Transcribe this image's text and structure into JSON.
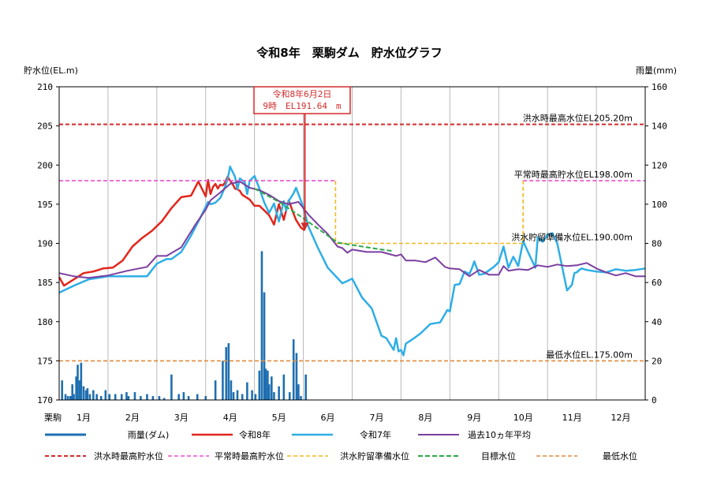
{
  "chart_data": {
    "type": "line",
    "title": "令和8年　栗駒ダム　貯水位グラフ",
    "ylabel": "貯水位(EL.m)",
    "y2label": "雨量(mm)",
    "ylim": [
      170,
      210
    ],
    "y2lim": [
      0,
      160
    ],
    "yticks": [
      170,
      175,
      180,
      185,
      190,
      195,
      200,
      205,
      210
    ],
    "y2ticks": [
      0,
      20,
      40,
      60,
      80,
      100,
      120,
      140,
      160
    ],
    "xlim": [
      0,
      12
    ],
    "dam_label": "栗駒",
    "months": [
      "1月",
      "2月",
      "3月",
      "4月",
      "5月",
      "6月",
      "7月",
      "8月",
      "9月",
      "10月",
      "11月",
      "12月"
    ],
    "grid": "vertical-monthly",
    "annotation": {
      "line1": "令和8年6月2日",
      "line2": "9時　EL191.64　m",
      "x": 5.03,
      "y": 191.64
    },
    "reference_labels": [
      {
        "key": "flood_max",
        "text": "洪水時最高水位EL205.20m",
        "y": 205.2
      },
      {
        "key": "normal_max",
        "text": "平常時最高貯水位EL198.00m",
        "y": 198.0
      },
      {
        "key": "flood_reserve",
        "text": "洪水貯留準備水位EL.190.00m",
        "y": 190.0
      },
      {
        "key": "min_level",
        "text": "最低水位EL.175.00m",
        "y": 175.0
      }
    ],
    "series": [
      {
        "name": "雨量(ダム)",
        "key": "rain",
        "color": "#1f6fb0",
        "style": "bar",
        "axis": "y2",
        "x": [
          0.06,
          0.13,
          0.18,
          0.23,
          0.27,
          0.3,
          0.35,
          0.38,
          0.42,
          0.45,
          0.5,
          0.55,
          0.58,
          0.63,
          0.7,
          0.77,
          0.86,
          0.95,
          1.03,
          1.15,
          1.28,
          1.38,
          1.42,
          1.55,
          1.67,
          1.8,
          1.92,
          2.05,
          2.15,
          2.3,
          2.45,
          2.55,
          2.65,
          2.83,
          3.0,
          3.2,
          3.35,
          3.42,
          3.47,
          3.52,
          3.57,
          3.65,
          3.75,
          3.85,
          3.95,
          4.02,
          4.1,
          4.15,
          4.2,
          4.23,
          4.27,
          4.3,
          4.35,
          4.4,
          4.5,
          4.6,
          4.72,
          4.8,
          4.86,
          4.9,
          4.95,
          5.05
        ],
        "values": [
          10,
          3,
          2,
          2,
          8,
          3,
          12,
          18,
          10,
          19,
          7,
          5,
          6,
          3,
          5,
          3,
          2,
          5,
          3,
          3,
          3,
          4,
          2,
          4,
          2,
          3,
          2,
          2,
          1,
          13,
          3,
          4,
          2,
          3,
          2,
          10,
          20,
          27,
          29,
          10,
          4,
          5,
          3,
          9,
          5,
          3,
          15,
          76,
          55,
          16,
          15,
          8,
          12,
          4,
          7,
          13,
          4,
          31,
          24,
          8,
          2,
          13
        ]
      },
      {
        "name": "令和8年",
        "key": "r8",
        "color": "#e1261c",
        "style": "solid",
        "width": 2.5,
        "x": [
          0,
          0.1,
          0.2,
          0.35,
          0.5,
          0.7,
          0.9,
          1.1,
          1.3,
          1.5,
          1.7,
          1.9,
          2.1,
          2.3,
          2.5,
          2.7,
          2.85,
          3.0,
          3.05,
          3.1,
          3.15,
          3.2,
          3.25,
          3.3,
          3.35,
          3.4,
          3.45,
          3.5,
          3.55,
          3.6,
          3.65,
          3.7,
          3.75,
          3.8,
          3.9,
          4.0,
          4.1,
          4.2,
          4.3,
          4.4,
          4.5,
          4.6,
          4.7,
          4.8,
          4.85,
          4.9,
          4.95,
          5.0,
          5.03
        ],
        "values": [
          185.7,
          184.6,
          185.0,
          185.6,
          186.2,
          186.4,
          186.8,
          186.9,
          187.8,
          189.6,
          190.7,
          191.6,
          192.8,
          194.5,
          195.9,
          196.1,
          197.9,
          196.0,
          198.1,
          196.3,
          197.2,
          197.6,
          197.0,
          197.5,
          197.4,
          197.8,
          198.5,
          198.0,
          197.6,
          197.0,
          196.9,
          196.7,
          196.2,
          196.0,
          195.6,
          194.8,
          194.8,
          194.2,
          193.6,
          192.4,
          195.0,
          193.0,
          195.5,
          193.8,
          193.0,
          192.5,
          192.0,
          191.8,
          191.64
        ]
      },
      {
        "name": "令和7年",
        "key": "r7",
        "color": "#2eaee6",
        "style": "solid",
        "width": 2.5,
        "x": [
          0,
          0.3,
          0.6,
          1.0,
          1.4,
          1.8,
          2.0,
          2.2,
          2.3,
          2.5,
          2.7,
          2.9,
          3.05,
          3.1,
          3.2,
          3.3,
          3.35,
          3.4,
          3.45,
          3.5,
          3.6,
          3.65,
          3.7,
          3.8,
          3.85,
          3.9,
          4.0,
          4.1,
          4.2,
          4.3,
          4.4,
          4.5,
          4.6,
          4.65,
          4.7,
          4.8,
          4.85,
          4.9,
          5.0,
          5.1,
          5.3,
          5.5,
          5.8,
          6.0,
          6.2,
          6.4,
          6.6,
          6.7,
          6.85,
          6.9,
          6.95,
          7.0,
          7.05,
          7.1,
          7.2,
          7.4,
          7.6,
          7.8,
          7.95,
          8.0,
          8.1,
          8.2,
          8.3,
          8.4,
          8.45,
          8.5,
          8.6,
          8.7,
          8.9,
          9.0,
          9.1,
          9.2,
          9.3,
          9.4,
          9.5,
          9.6,
          9.75,
          9.8,
          9.9,
          10.0,
          10.1,
          10.2,
          10.3,
          10.4,
          10.5,
          10.55,
          10.6,
          10.65,
          10.7,
          10.8,
          10.9,
          11.0,
          11.2,
          11.4,
          11.6,
          11.8,
          12.0
        ],
        "values": [
          183.7,
          184.6,
          185.4,
          185.8,
          185.8,
          185.8,
          187.4,
          188.0,
          188.0,
          188.9,
          191.0,
          193.4,
          195.3,
          195.0,
          195.2,
          195.8,
          196.5,
          197.3,
          198.2,
          199.8,
          198.5,
          196.9,
          198.3,
          197.8,
          196.3,
          198.0,
          198.6,
          197.0,
          195.2,
          193.9,
          195.1,
          192.8,
          195.4,
          194.2,
          195.4,
          196.4,
          197.1,
          196.3,
          194.6,
          192.2,
          189.4,
          186.9,
          184.9,
          185.5,
          183.1,
          181.7,
          178.2,
          177.9,
          176.4,
          177.9,
          176.2,
          176.4,
          175.7,
          177.2,
          177.6,
          178.5,
          179.7,
          179.9,
          181.5,
          181.3,
          184.7,
          184.8,
          186.4,
          186.1,
          186.8,
          187.7,
          186.0,
          186.1,
          187.0,
          187.6,
          189.6,
          186.9,
          188.3,
          187.1,
          190.3,
          188.9,
          186.9,
          190.8,
          190.2,
          191.1,
          191.3,
          190.0,
          187.0,
          184.0,
          184.7,
          186.2,
          186.3,
          186.6,
          186.8,
          186.6,
          186.5,
          186.4,
          186.3,
          186.7,
          186.5,
          186.6,
          186.8
        ]
      },
      {
        "name": "過去10ヵ年平均",
        "key": "avg",
        "color": "#7b3fa0",
        "style": "solid",
        "width": 2,
        "x": [
          0,
          0.3,
          0.6,
          1.0,
          1.4,
          1.8,
          2.0,
          2.2,
          2.5,
          2.8,
          3.0,
          3.1,
          3.3,
          3.5,
          3.7,
          3.9,
          4.1,
          4.3,
          4.5,
          4.7,
          4.9,
          5.1,
          5.3,
          5.5,
          5.7,
          5.8,
          5.9,
          6.0,
          6.3,
          6.6,
          6.9,
          7.0,
          7.1,
          7.3,
          7.5,
          7.7,
          7.9,
          8.0,
          8.2,
          8.4,
          8.6,
          8.8,
          9.0,
          9.1,
          9.2,
          9.4,
          9.6,
          9.8,
          10.0,
          10.2,
          10.4,
          10.6,
          10.8,
          11.0,
          11.2,
          11.4,
          11.6,
          11.8,
          12.0
        ],
        "values": [
          186.2,
          185.8,
          185.6,
          185.9,
          186.5,
          187.0,
          188.4,
          188.4,
          189.5,
          192.5,
          194.3,
          195.5,
          196.5,
          197.6,
          197.9,
          197.1,
          196.8,
          196.2,
          195.4,
          195.0,
          195.3,
          193.7,
          192.4,
          191.2,
          189.6,
          189.4,
          188.8,
          189.2,
          188.9,
          188.9,
          188.4,
          188.6,
          187.8,
          187.8,
          187.6,
          188.2,
          187.0,
          186.8,
          186.7,
          185.8,
          186.6,
          186.0,
          186.0,
          187.1,
          186.5,
          186.7,
          186.6,
          187.2,
          187.0,
          187.3,
          187.1,
          187.2,
          187.5,
          186.8,
          186.3,
          185.9,
          186.2,
          185.8,
          185.8
        ]
      },
      {
        "name": "洪水時最高貯水位",
        "key": "flood_max",
        "color": "#d42b2b",
        "style": "dashed",
        "width": 2,
        "x": [
          0,
          12
        ],
        "values": [
          205.2,
          205.2
        ]
      },
      {
        "name": "平常時最高貯水位",
        "key": "normal_max",
        "color": "#e94fd0",
        "style": "dashed",
        "width": 1.6,
        "x": [
          0,
          5.66,
          5.66,
          9.5,
          9.5,
          12
        ],
        "values": [
          198.0,
          198.0,
          null,
          null,
          198.0,
          198.0
        ]
      },
      {
        "name": "洪水貯留準備水位",
        "key": "flood_reserve",
        "color": "#f2b81c",
        "style": "dashed",
        "width": 1.6,
        "x": [
          5.66,
          5.66,
          5.7,
          9.5,
          9.5
        ],
        "values": [
          198.0,
          190.0,
          190.0,
          190.0,
          198.0
        ]
      },
      {
        "name": "目標水位",
        "key": "target",
        "color": "#2ea84a",
        "style": "dashed",
        "width": 2,
        "x": [
          4.0,
          4.5,
          5.0,
          5.5,
          5.7,
          6.0,
          6.5,
          6.85
        ],
        "values": [
          197.0,
          195.3,
          193.2,
          191.0,
          190.1,
          189.8,
          189.3,
          189.0
        ]
      },
      {
        "name": "最低水位",
        "key": "min_level",
        "color": "#e08a3a",
        "style": "dashed",
        "width": 1.6,
        "x": [
          0,
          12
        ],
        "values": [
          175.0,
          175.0
        ]
      }
    ]
  }
}
